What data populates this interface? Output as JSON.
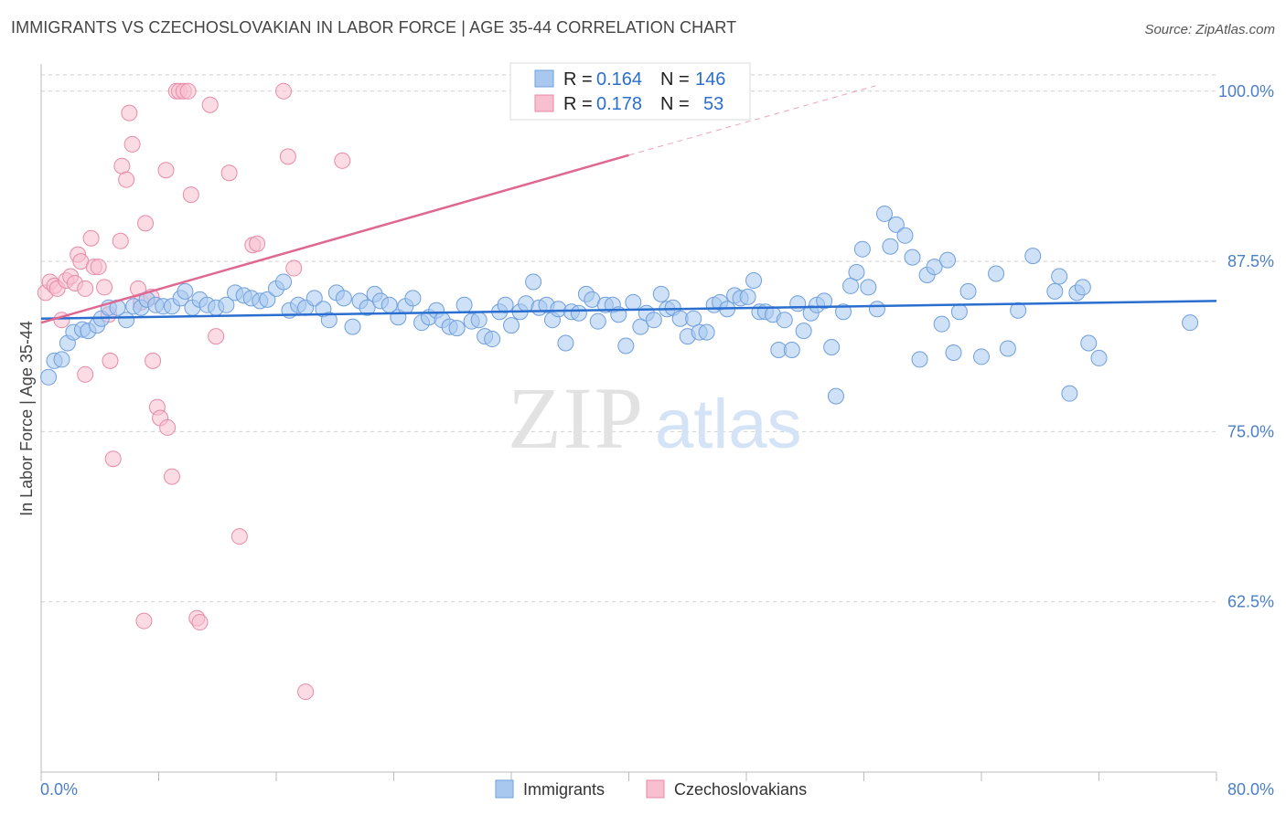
{
  "title": "IMMIGRANTS VS CZECHOSLOVAKIAN IN LABOR FORCE | AGE 35-44 CORRELATION CHART",
  "source": "Source: ZipAtlas.com",
  "watermark": {
    "zip": "ZIP",
    "atlas": "atlas"
  },
  "colors": {
    "immigrants_fill": "#a8c8f0",
    "immigrants_stroke": "#6f9fdc",
    "immigrants_line": "#2a6fcf",
    "czech_fill": "#f8bfd0",
    "czech_stroke": "#e88aa6",
    "czech_line": "#e06890",
    "tick_text": "#4a7fc8",
    "grid": "#d0d0d0"
  },
  "stats_legend": {
    "r_label": "R =",
    "n_label": "N =",
    "rows": [
      {
        "r": "0.164",
        "n": "146"
      },
      {
        "r": "0.178",
        "n": "53"
      }
    ]
  },
  "bottom_legend": [
    "Immigrants",
    "Czechoslovakians"
  ],
  "chart_data": {
    "type": "scatter",
    "title": "IMMIGRANTS VS CZECHOSLOVAKIAN IN LABOR FORCE | AGE 35-44 CORRELATION CHART",
    "xlabel": "",
    "ylabel": "In Labor Force | Age 35-44",
    "xlim": [
      0,
      80
    ],
    "ylim": [
      50,
      102
    ],
    "x_tick_labels": [
      "0.0%",
      "80.0%"
    ],
    "y_ticks": [
      62.5,
      75.0,
      87.5,
      100.0
    ],
    "y_tick_labels": [
      "62.5%",
      "75.0%",
      "87.5%",
      "100.0%"
    ],
    "grid": true,
    "legend_position": "top-center",
    "series": [
      {
        "name": "Immigrants",
        "r": 0.164,
        "n": 146,
        "trend": {
          "x": [
            0,
            80
          ],
          "y": [
            83.3,
            84.6
          ]
        },
        "points": [
          [
            0.5,
            79.0
          ],
          [
            0.9,
            80.2
          ],
          [
            1.4,
            80.3
          ],
          [
            1.8,
            81.5
          ],
          [
            2.2,
            82.3
          ],
          [
            2.8,
            82.5
          ],
          [
            3.2,
            82.4
          ],
          [
            3.8,
            82.8
          ],
          [
            4.1,
            83.3
          ],
          [
            4.6,
            84.1
          ],
          [
            5.2,
            84.1
          ],
          [
            5.8,
            83.2
          ],
          [
            6.3,
            84.2
          ],
          [
            6.8,
            84.1
          ],
          [
            7.2,
            84.7
          ],
          [
            7.8,
            84.3
          ],
          [
            8.3,
            84.2
          ],
          [
            8.9,
            84.2
          ],
          [
            9.5,
            84.8
          ],
          [
            9.8,
            85.3
          ],
          [
            10.3,
            84.1
          ],
          [
            10.8,
            84.7
          ],
          [
            11.3,
            84.3
          ],
          [
            11.9,
            84.1
          ],
          [
            12.6,
            84.3
          ],
          [
            13.2,
            85.2
          ],
          [
            13.8,
            85.0
          ],
          [
            14.3,
            84.8
          ],
          [
            14.9,
            84.6
          ],
          [
            15.4,
            84.7
          ],
          [
            16.0,
            85.5
          ],
          [
            16.5,
            86.0
          ],
          [
            16.9,
            83.9
          ],
          [
            17.5,
            84.3
          ],
          [
            18.0,
            84.1
          ],
          [
            18.6,
            84.8
          ],
          [
            19.2,
            84.0
          ],
          [
            19.6,
            83.2
          ],
          [
            20.1,
            85.2
          ],
          [
            20.6,
            84.8
          ],
          [
            21.2,
            82.7
          ],
          [
            21.7,
            84.6
          ],
          [
            22.2,
            84.1
          ],
          [
            22.7,
            85.1
          ],
          [
            23.1,
            84.6
          ],
          [
            23.7,
            84.3
          ],
          [
            24.3,
            83.4
          ],
          [
            24.8,
            84.2
          ],
          [
            25.3,
            84.8
          ],
          [
            25.9,
            83.0
          ],
          [
            26.4,
            83.4
          ],
          [
            26.9,
            83.9
          ],
          [
            27.3,
            83.2
          ],
          [
            27.8,
            82.7
          ],
          [
            28.3,
            82.6
          ],
          [
            28.8,
            84.3
          ],
          [
            29.3,
            83.1
          ],
          [
            29.8,
            83.2
          ],
          [
            30.2,
            82.0
          ],
          [
            30.7,
            81.8
          ],
          [
            31.2,
            83.8
          ],
          [
            31.6,
            84.3
          ],
          [
            32.0,
            82.8
          ],
          [
            32.6,
            83.8
          ],
          [
            33.0,
            84.4
          ],
          [
            33.5,
            86.0
          ],
          [
            33.9,
            84.1
          ],
          [
            34.4,
            84.3
          ],
          [
            34.8,
            83.2
          ],
          [
            35.2,
            84.0
          ],
          [
            35.7,
            81.5
          ],
          [
            36.1,
            83.8
          ],
          [
            36.6,
            83.7
          ],
          [
            37.1,
            85.1
          ],
          [
            37.5,
            84.7
          ],
          [
            37.9,
            83.1
          ],
          [
            38.4,
            84.3
          ],
          [
            38.9,
            84.3
          ],
          [
            39.3,
            83.6
          ],
          [
            39.8,
            81.3
          ],
          [
            40.3,
            84.5
          ],
          [
            40.8,
            82.7
          ],
          [
            41.2,
            83.7
          ],
          [
            41.7,
            83.2
          ],
          [
            42.2,
            85.1
          ],
          [
            42.6,
            84.0
          ],
          [
            43.0,
            84.1
          ],
          [
            43.5,
            83.3
          ],
          [
            44.0,
            82.0
          ],
          [
            44.4,
            83.3
          ],
          [
            44.8,
            82.3
          ],
          [
            45.3,
            82.3
          ],
          [
            45.8,
            84.3
          ],
          [
            46.2,
            84.5
          ],
          [
            46.7,
            84.0
          ],
          [
            47.2,
            85.0
          ],
          [
            47.6,
            84.8
          ],
          [
            48.1,
            84.9
          ],
          [
            48.5,
            86.1
          ],
          [
            48.9,
            83.8
          ],
          [
            49.3,
            83.8
          ],
          [
            49.8,
            83.6
          ],
          [
            50.2,
            81.0
          ],
          [
            50.6,
            83.2
          ],
          [
            51.1,
            81.0
          ],
          [
            51.5,
            84.4
          ],
          [
            51.9,
            82.4
          ],
          [
            52.4,
            83.7
          ],
          [
            52.8,
            84.3
          ],
          [
            53.3,
            84.6
          ],
          [
            53.8,
            81.2
          ],
          [
            54.1,
            77.6
          ],
          [
            54.6,
            83.8
          ],
          [
            55.1,
            85.7
          ],
          [
            55.5,
            86.7
          ],
          [
            55.9,
            88.4
          ],
          [
            56.3,
            85.6
          ],
          [
            56.9,
            84.0
          ],
          [
            57.4,
            91.0
          ],
          [
            57.8,
            88.6
          ],
          [
            58.2,
            90.2
          ],
          [
            58.8,
            89.4
          ],
          [
            59.3,
            87.8
          ],
          [
            59.8,
            80.3
          ],
          [
            60.3,
            86.5
          ],
          [
            60.8,
            87.1
          ],
          [
            61.3,
            82.9
          ],
          [
            61.7,
            87.6
          ],
          [
            62.1,
            80.8
          ],
          [
            62.5,
            83.8
          ],
          [
            63.1,
            85.3
          ],
          [
            64.0,
            80.5
          ],
          [
            65.0,
            86.6
          ],
          [
            65.8,
            81.1
          ],
          [
            66.5,
            83.9
          ],
          [
            67.5,
            87.9
          ],
          [
            69.0,
            85.3
          ],
          [
            69.3,
            86.4
          ],
          [
            70.0,
            77.8
          ],
          [
            70.5,
            85.2
          ],
          [
            70.9,
            85.6
          ],
          [
            71.3,
            81.5
          ],
          [
            72.0,
            80.4
          ],
          [
            78.2,
            83.0
          ]
        ]
      },
      {
        "name": "Czechoslovakians",
        "r": 0.178,
        "n": 53,
        "trend": {
          "x": [
            0,
            40
          ],
          "y": [
            83.0,
            95.3
          ],
          "dash_to": [
            56.8,
            100.4
          ]
        },
        "points": [
          [
            0.3,
            85.2
          ],
          [
            0.6,
            86.0
          ],
          [
            0.9,
            85.7
          ],
          [
            1.1,
            85.5
          ],
          [
            1.4,
            83.2
          ],
          [
            1.7,
            86.1
          ],
          [
            2.0,
            86.4
          ],
          [
            2.3,
            85.9
          ],
          [
            2.5,
            88.0
          ],
          [
            2.7,
            87.5
          ],
          [
            3.0,
            85.5
          ],
          [
            3.4,
            89.2
          ],
          [
            3.6,
            87.1
          ],
          [
            3.9,
            87.1
          ],
          [
            4.3,
            85.6
          ],
          [
            4.6,
            83.6
          ],
          [
            4.7,
            80.2
          ],
          [
            4.9,
            73.0
          ],
          [
            5.4,
            89.0
          ],
          [
            5.5,
            94.5
          ],
          [
            5.8,
            93.5
          ],
          [
            6.0,
            98.4
          ],
          [
            6.2,
            96.1
          ],
          [
            6.6,
            85.5
          ],
          [
            6.8,
            84.5
          ],
          [
            7.1,
            90.3
          ],
          [
            7.5,
            84.9
          ],
          [
            7.6,
            80.2
          ],
          [
            7.9,
            76.8
          ],
          [
            8.1,
            76.0
          ],
          [
            8.5,
            94.2
          ],
          [
            8.6,
            75.3
          ],
          [
            8.9,
            71.7
          ],
          [
            9.2,
            100.0
          ],
          [
            9.4,
            100.0
          ],
          [
            9.7,
            100.0
          ],
          [
            10.0,
            100.0
          ],
          [
            10.2,
            92.4
          ],
          [
            10.6,
            61.3
          ],
          [
            10.8,
            61.0
          ],
          [
            11.5,
            99.0
          ],
          [
            11.9,
            82.0
          ],
          [
            12.8,
            94.0
          ],
          [
            13.5,
            67.3
          ],
          [
            14.4,
            88.7
          ],
          [
            14.7,
            88.8
          ],
          [
            16.5,
            100.0
          ],
          [
            16.8,
            95.2
          ],
          [
            17.2,
            87.0
          ],
          [
            18.0,
            55.9
          ],
          [
            20.5,
            94.9
          ],
          [
            7.0,
            61.1
          ],
          [
            3.0,
            79.2
          ]
        ]
      }
    ]
  }
}
